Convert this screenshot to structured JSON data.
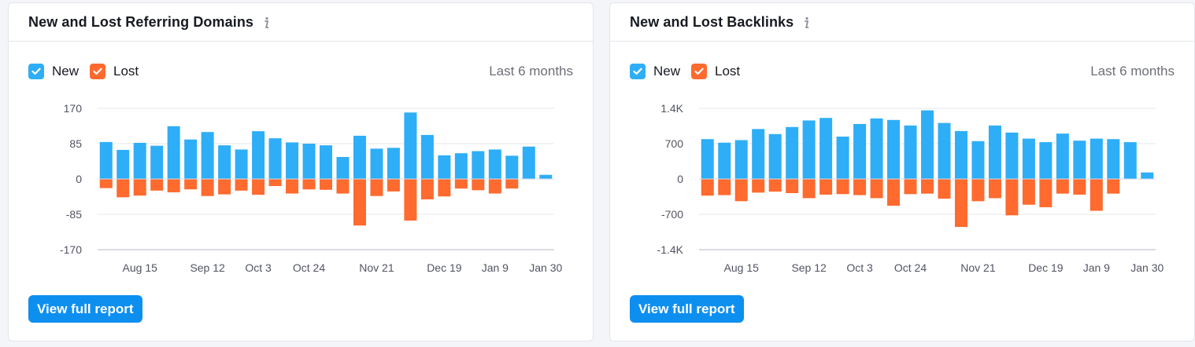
{
  "colors": {
    "new": "#2eaef7",
    "lost": "#ff6a2f",
    "button": "#0d8ff0"
  },
  "cards": [
    {
      "title": "New and Lost Referring Domains",
      "legend": {
        "new_label": "New",
        "lost_label": "Lost"
      },
      "range_label": "Last 6 months",
      "button_label": "View full report",
      "chart_data": {
        "type": "bar",
        "ytick_labels": [
          "170",
          "85",
          "0",
          "-85",
          "-170"
        ],
        "ylim": [
          -170,
          170
        ],
        "xtick_labels": [
          "Aug 15",
          "Sep 12",
          "Oct 3",
          "Oct 24",
          "Nov 21",
          "Dec 19",
          "Jan 9",
          "Jan 30"
        ],
        "series": [
          {
            "name": "New",
            "values": [
              89,
              70,
              87,
              80,
              127,
              95,
              113,
              81,
              71,
              115,
              98,
              88,
              85,
              81,
              53,
              104,
              73,
              75,
              160,
              106,
              57,
              62,
              67,
              71,
              56,
              78,
              10
            ]
          },
          {
            "name": "Lost",
            "values": [
              -22,
              -44,
              -40,
              -28,
              -32,
              -25,
              -41,
              -37,
              -28,
              -38,
              -17,
              -35,
              -25,
              -26,
              -35,
              -112,
              -41,
              -30,
              -100,
              -49,
              -42,
              -23,
              -27,
              -35,
              -23,
              0,
              0
            ]
          }
        ]
      }
    },
    {
      "title": "New and Lost Backlinks",
      "legend": {
        "new_label": "New",
        "lost_label": "Lost"
      },
      "range_label": "Last 6 months",
      "button_label": "View full report",
      "chart_data": {
        "type": "bar",
        "ytick_labels": [
          "1.4K",
          "700",
          "0",
          "-700",
          "-1.4K"
        ],
        "ylim": [
          -1400,
          1400
        ],
        "xtick_labels": [
          "Aug 15",
          "Sep 12",
          "Oct 3",
          "Oct 24",
          "Nov 21",
          "Dec 19",
          "Jan 9",
          "Jan 30"
        ],
        "series": [
          {
            "name": "New",
            "values": [
              790,
              720,
              770,
              990,
              890,
              1030,
              1160,
              1210,
              840,
              1090,
              1200,
              1170,
              1060,
              1360,
              1110,
              950,
              750,
              1060,
              920,
              800,
              730,
              900,
              760,
              800,
              790,
              730,
              130
            ]
          },
          {
            "name": "Lost",
            "values": [
              -330,
              -320,
              -440,
              -270,
              -250,
              -280,
              -380,
              -310,
              -300,
              -320,
              -380,
              -530,
              -300,
              -290,
              -390,
              -950,
              -440,
              -380,
              -720,
              -510,
              -560,
              -290,
              -310,
              -630,
              -290,
              0,
              0
            ]
          }
        ]
      }
    }
  ]
}
